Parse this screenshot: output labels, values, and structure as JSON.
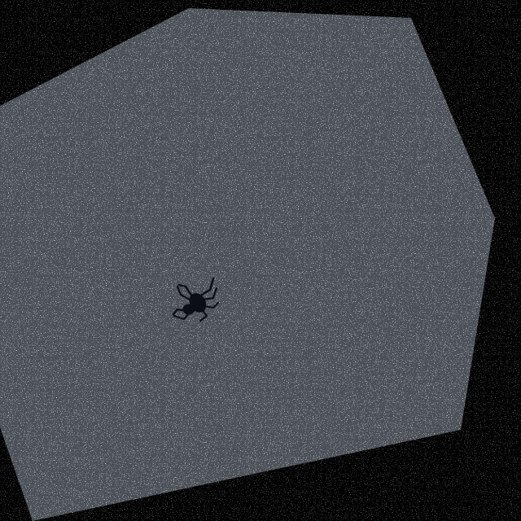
{
  "image": {
    "subject": "spider-icon",
    "background_color": "#000000",
    "surface_color": "#4a4f57",
    "speckle_color": "#e6e6e6",
    "subject_color": "#0b0e14"
  }
}
